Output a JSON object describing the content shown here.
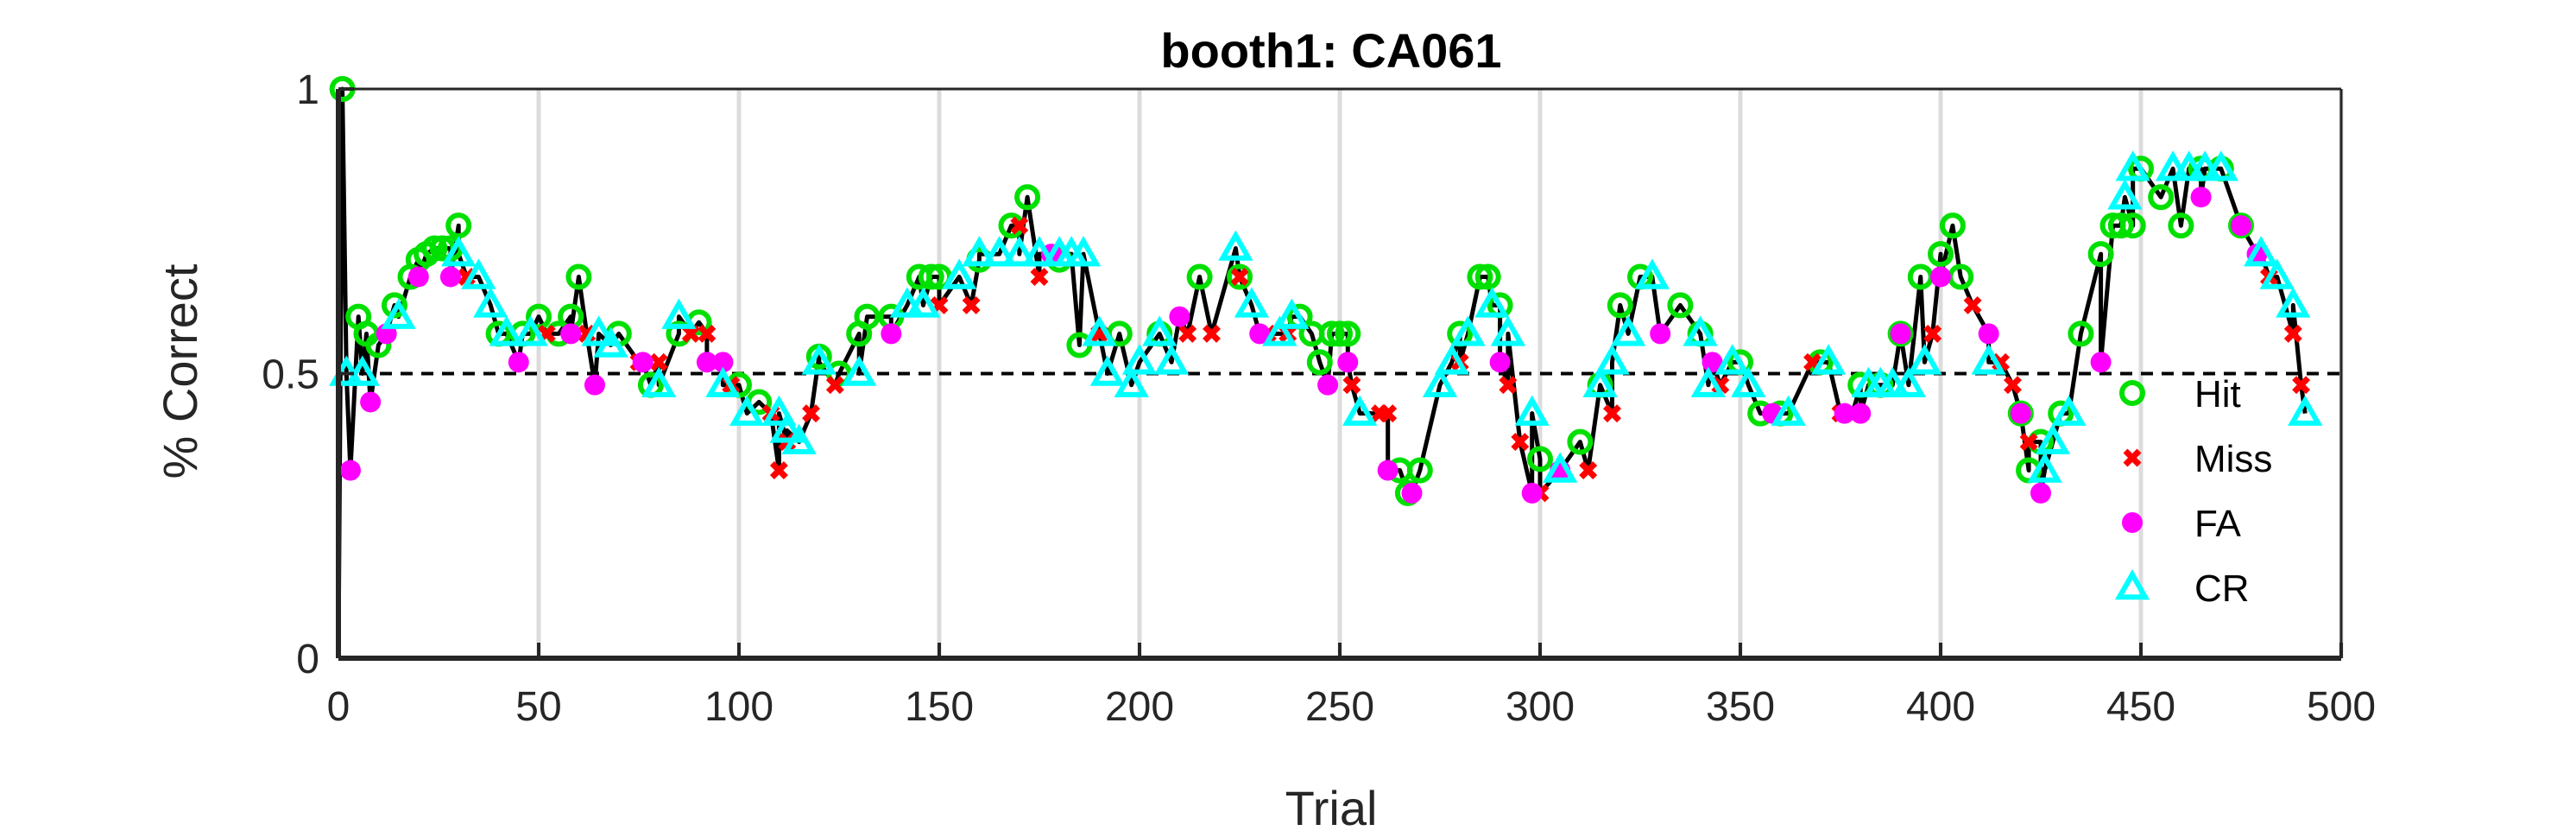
{
  "chart_data": {
    "type": "scatter",
    "title": "booth1: CA061",
    "xlabel": "Trial",
    "ylabel": "% Correct",
    "xlim": [
      0,
      500
    ],
    "ylim": [
      0,
      1
    ],
    "xticks": [
      0,
      50,
      100,
      150,
      200,
      250,
      300,
      350,
      400,
      450,
      500
    ],
    "yticks": [
      0,
      0.5,
      1
    ],
    "ytick_labels": [
      "0",
      "0.5",
      "1"
    ],
    "grid": "vertical",
    "reference_line": 0.5,
    "legend": {
      "placement": "right",
      "entries": [
        "Hit",
        "Miss",
        "FA",
        "CR"
      ]
    },
    "series": [
      {
        "name": "Hit",
        "color": "#00e000",
        "marker": "open-circle",
        "x": [
          1,
          5,
          7,
          10,
          14,
          18,
          20,
          22,
          24,
          26,
          28,
          30,
          40,
          46,
          50,
          55,
          58,
          60,
          70,
          78,
          85,
          90,
          100,
          105,
          120,
          125,
          130,
          132,
          138,
          145,
          148,
          150,
          160,
          168,
          172,
          180,
          185,
          195,
          205,
          215,
          225,
          240,
          243,
          245,
          248,
          250,
          252,
          265,
          267,
          270,
          280,
          285,
          287,
          290,
          300,
          310,
          315,
          320,
          325,
          335,
          340,
          350,
          355,
          360,
          370,
          380,
          385,
          390,
          395,
          400,
          403,
          405,
          420,
          422,
          425,
          430,
          435,
          440,
          443,
          445,
          448,
          450,
          455,
          460,
          465,
          470,
          475
        ],
        "y": [
          1.0,
          0.6,
          0.57,
          0.55,
          0.62,
          0.67,
          0.7,
          0.71,
          0.72,
          0.72,
          0.72,
          0.76,
          0.57,
          0.57,
          0.6,
          0.57,
          0.6,
          0.67,
          0.57,
          0.48,
          0.57,
          0.59,
          0.48,
          0.45,
          0.53,
          0.5,
          0.57,
          0.6,
          0.6,
          0.67,
          0.67,
          0.67,
          0.7,
          0.76,
          0.81,
          0.7,
          0.55,
          0.57,
          0.57,
          0.67,
          0.67,
          0.6,
          0.57,
          0.52,
          0.57,
          0.57,
          0.57,
          0.33,
          0.29,
          0.33,
          0.57,
          0.67,
          0.67,
          0.62,
          0.35,
          0.38,
          0.48,
          0.62,
          0.67,
          0.62,
          0.57,
          0.52,
          0.43,
          0.43,
          0.52,
          0.48,
          0.48,
          0.57,
          0.67,
          0.71,
          0.76,
          0.67,
          0.43,
          0.33,
          0.38,
          0.43,
          0.57,
          0.71,
          0.76,
          0.76,
          0.76,
          0.86,
          0.81,
          0.76,
          0.86,
          0.86,
          0.76
        ]
      },
      {
        "name": "Miss",
        "color": "#ff0000",
        "marker": "x",
        "x": [
          32,
          52,
          62,
          75,
          80,
          88,
          92,
          98,
          108,
          110,
          112,
          118,
          124,
          150,
          158,
          170,
          175,
          190,
          212,
          218,
          225,
          232,
          237,
          253,
          260,
          262,
          280,
          292,
          295,
          300,
          312,
          318,
          345,
          358,
          368,
          375,
          378,
          398,
          408,
          415,
          418,
          422,
          482,
          488,
          490
        ],
        "y": [
          0.67,
          0.57,
          0.57,
          0.52,
          0.52,
          0.57,
          0.57,
          0.48,
          0.43,
          0.33,
          0.38,
          0.43,
          0.48,
          0.62,
          0.62,
          0.76,
          0.67,
          0.57,
          0.57,
          0.57,
          0.67,
          0.57,
          0.57,
          0.48,
          0.43,
          0.43,
          0.52,
          0.48,
          0.38,
          0.29,
          0.33,
          0.43,
          0.48,
          0.43,
          0.52,
          0.43,
          0.43,
          0.57,
          0.62,
          0.52,
          0.48,
          0.38,
          0.67,
          0.57,
          0.48
        ]
      },
      {
        "name": "FA",
        "color": "#ff00ff",
        "marker": "filled-circle",
        "x": [
          3,
          8,
          12,
          20,
          28,
          45,
          58,
          64,
          76,
          92,
          96,
          138,
          178,
          210,
          230,
          247,
          252,
          262,
          268,
          290,
          298,
          305,
          330,
          343,
          358,
          376,
          380,
          390,
          400,
          412,
          420,
          425,
          440,
          465,
          475,
          479
        ],
        "y": [
          0.33,
          0.45,
          0.57,
          0.67,
          0.67,
          0.52,
          0.57,
          0.48,
          0.52,
          0.52,
          0.52,
          0.57,
          0.71,
          0.6,
          0.57,
          0.48,
          0.52,
          0.33,
          0.29,
          0.52,
          0.29,
          0.33,
          0.57,
          0.52,
          0.43,
          0.43,
          0.43,
          0.57,
          0.67,
          0.57,
          0.43,
          0.29,
          0.52,
          0.81,
          0.76,
          0.71
        ]
      },
      {
        "name": "CR",
        "color": "#00ffff",
        "marker": "open-triangle",
        "x": [
          2,
          6,
          15,
          30,
          35,
          38,
          42,
          48,
          65,
          68,
          80,
          85,
          96,
          102,
          110,
          112,
          115,
          120,
          130,
          142,
          146,
          155,
          160,
          165,
          170,
          175,
          180,
          183,
          186,
          190,
          192,
          198,
          200,
          205,
          208,
          224,
          228,
          235,
          238,
          255,
          275,
          278,
          282,
          288,
          292,
          298,
          305,
          315,
          318,
          322,
          328,
          340,
          342,
          348,
          352,
          362,
          372,
          382,
          385,
          388,
          392,
          396,
          412,
          426,
          428,
          432,
          446,
          448,
          458,
          462,
          466,
          470,
          480,
          484,
          488,
          491
        ],
        "y": [
          0.5,
          0.5,
          0.6,
          0.71,
          0.67,
          0.62,
          0.57,
          0.57,
          0.57,
          0.55,
          0.48,
          0.6,
          0.48,
          0.43,
          0.43,
          0.4,
          0.38,
          0.52,
          0.5,
          0.62,
          0.62,
          0.67,
          0.71,
          0.71,
          0.71,
          0.71,
          0.71,
          0.71,
          0.71,
          0.57,
          0.5,
          0.48,
          0.52,
          0.57,
          0.52,
          0.72,
          0.62,
          0.57,
          0.6,
          0.43,
          0.48,
          0.52,
          0.57,
          0.62,
          0.57,
          0.43,
          0.33,
          0.48,
          0.52,
          0.57,
          0.67,
          0.57,
          0.48,
          0.52,
          0.48,
          0.43,
          0.52,
          0.48,
          0.48,
          0.48,
          0.48,
          0.52,
          0.52,
          0.33,
          0.38,
          0.43,
          0.81,
          0.86,
          0.86,
          0.86,
          0.86,
          0.86,
          0.71,
          0.67,
          0.62,
          0.43
        ]
      }
    ]
  }
}
